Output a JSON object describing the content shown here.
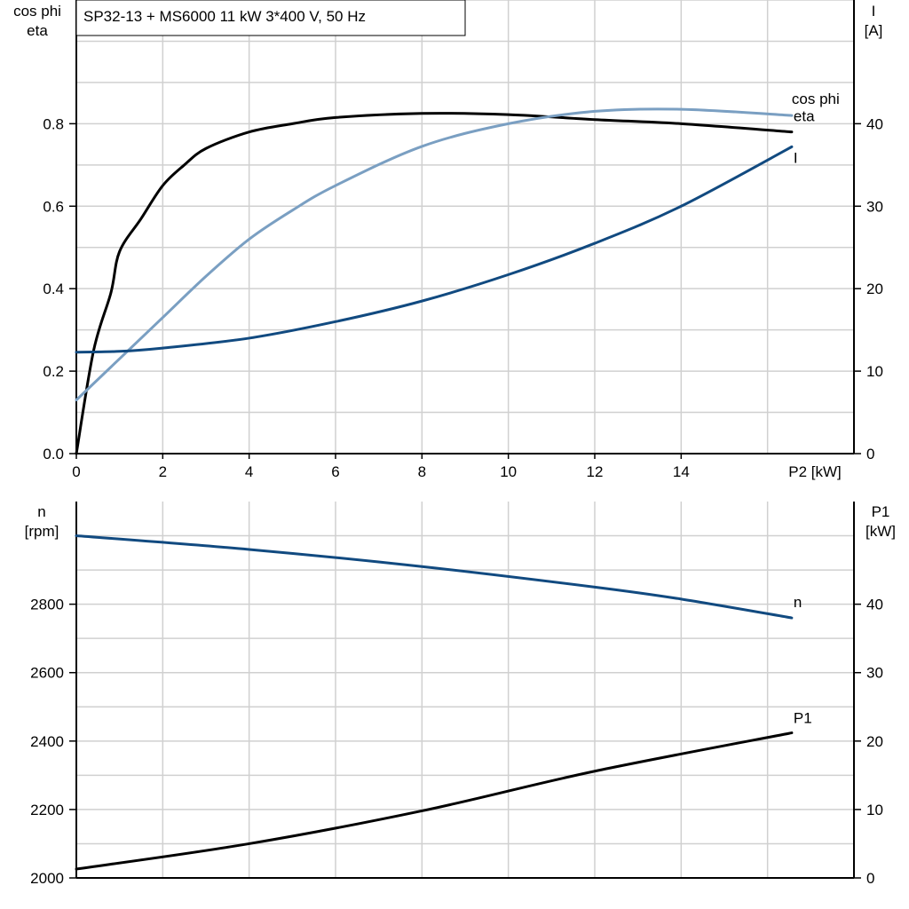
{
  "title": "SP32-13 + MS6000   11 kW   3*400 V, 50 Hz",
  "colors": {
    "eta": "#000000",
    "cos_phi": "#7a9fc2",
    "I": "#114a80",
    "n": "#114a80",
    "P1": "#000000",
    "grid": "#d0d0d0"
  },
  "chart_data": [
    {
      "type": "line",
      "xlabel": "P2 [kW]",
      "xlim": [
        0,
        18
      ],
      "xticks": [
        0,
        2,
        4,
        6,
        8,
        10,
        12,
        14
      ],
      "ylabel_left": [
        "cos phi",
        "eta"
      ],
      "ylim_left": [
        0,
        1.1
      ],
      "yticks_left": [
        "0.0",
        "0.2",
        "0.4",
        "0.6",
        "0.8"
      ],
      "ylabel_right": [
        "I",
        "[A]"
      ],
      "ylim_right": [
        0,
        55
      ],
      "yticks_right": [
        "0",
        "10",
        "20",
        "30",
        "40"
      ],
      "grid": true,
      "series": [
        {
          "name": "eta",
          "axis": "left",
          "color": "#000000",
          "x": [
            0,
            0.4,
            0.8,
            1,
            1.5,
            2,
            2.5,
            3,
            4,
            5,
            6,
            8,
            10,
            12,
            14,
            16.56
          ],
          "y": [
            0,
            0.25,
            0.39,
            0.49,
            0.57,
            0.65,
            0.7,
            0.74,
            0.78,
            0.8,
            0.815,
            0.825,
            0.822,
            0.81,
            0.8,
            0.78
          ]
        },
        {
          "name": "cos phi",
          "axis": "left",
          "color": "#7a9fc2",
          "x": [
            0,
            1,
            2,
            3,
            4,
            5,
            6,
            8,
            10,
            12,
            14,
            16.56
          ],
          "y": [
            0.13,
            0.23,
            0.33,
            0.43,
            0.52,
            0.59,
            0.65,
            0.745,
            0.8,
            0.83,
            0.835,
            0.82
          ]
        },
        {
          "name": "I",
          "axis": "right",
          "color": "#114a80",
          "x": [
            0,
            1,
            2,
            4,
            6,
            8,
            10,
            12,
            14,
            16.56
          ],
          "y": [
            12.3,
            12.4,
            12.8,
            14,
            16,
            18.5,
            21.7,
            25.5,
            30,
            37.2
          ]
        }
      ]
    },
    {
      "type": "line",
      "xlim": [
        0,
        18
      ],
      "ylabel_left": [
        "n",
        "[rpm]"
      ],
      "ylim_left": [
        2000,
        3100
      ],
      "yticks_left": [
        "2000",
        "2200",
        "2400",
        "2600",
        "2800"
      ],
      "ylabel_right": [
        "P1",
        "[kW]"
      ],
      "ylim_right": [
        0,
        55
      ],
      "yticks_right": [
        "0",
        "10",
        "20",
        "30",
        "40"
      ],
      "grid": true,
      "series": [
        {
          "name": "n",
          "axis": "left",
          "color": "#114a80",
          "x": [
            0,
            4,
            8,
            12,
            14,
            16.56
          ],
          "y": [
            3000,
            2960,
            2910,
            2850,
            2815,
            2760
          ]
        },
        {
          "name": "P1",
          "axis": "right",
          "color": "#000000",
          "x": [
            0,
            4,
            8,
            12,
            16.56
          ],
          "y": [
            1.3,
            5,
            9.8,
            15.6,
            21.2
          ]
        }
      ]
    }
  ]
}
